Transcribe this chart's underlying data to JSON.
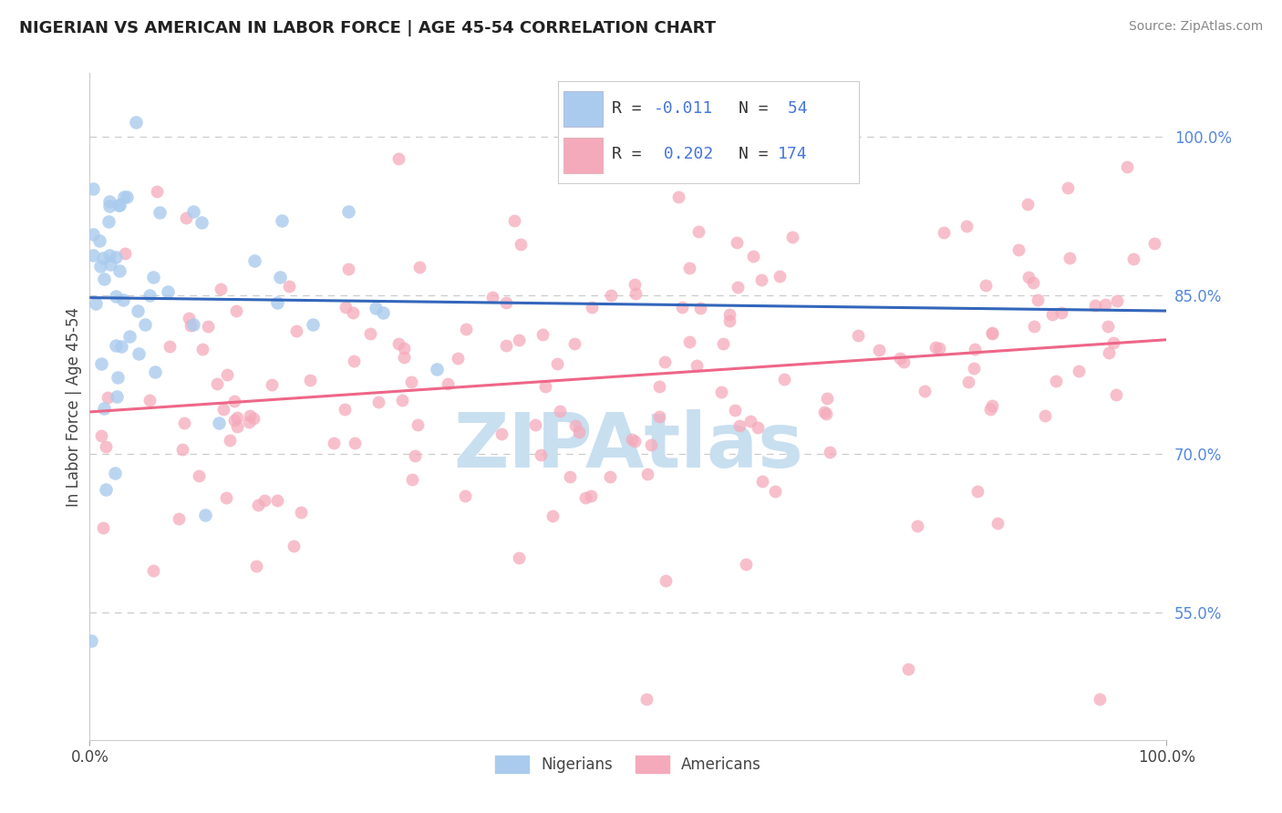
{
  "title": "NIGERIAN VS AMERICAN IN LABOR FORCE | AGE 45-54 CORRELATION CHART",
  "source": "Source: ZipAtlas.com",
  "ylabel": "In Labor Force | Age 45-54",
  "xlim": [
    0.0,
    1.0
  ],
  "ylim": [
    0.43,
    1.06
  ],
  "x_ticks": [
    0.0,
    1.0
  ],
  "x_tick_labels": [
    "0.0%",
    "100.0%"
  ],
  "y_ticks_right": [
    0.55,
    0.7,
    0.85,
    1.0
  ],
  "y_tick_labels_right": [
    "55.0%",
    "70.0%",
    "85.0%",
    "100.0%"
  ],
  "background_color": "#ffffff",
  "grid_color": "#cccccc",
  "nigerian_color": "#aacbee",
  "american_color": "#f5aabb",
  "nigerian_line_color": "#3366bb",
  "american_line_color": "#ee6688",
  "nigerian_line_dash": [
    8,
    4
  ],
  "american_line_solid": true,
  "legend_text_color": "#4477cc",
  "legend_label_color": "#333333",
  "watermark_text": "ZIPAtlas",
  "watermark_color": "#ddeeff",
  "watermark_text_color": "#88aabb",
  "nigerian_R": -0.011,
  "nigerian_N": 54,
  "american_R": 0.202,
  "american_N": 174,
  "nigerian_trend_y0": 0.858,
  "nigerian_trend_y1": 0.848,
  "american_trend_y0": 0.72,
  "american_trend_y1": 0.855
}
